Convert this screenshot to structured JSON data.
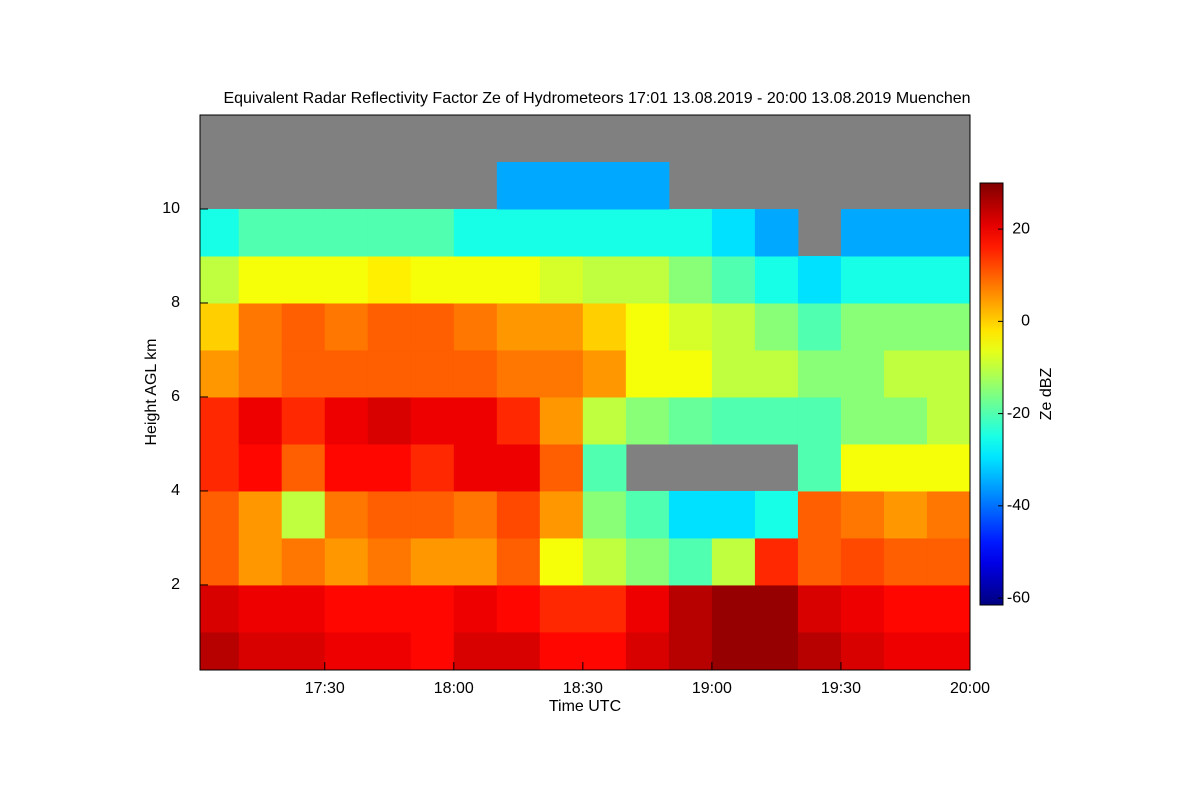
{
  "chart_data": {
    "type": "heatmap",
    "title": "Equivalent Radar Reflectivity Factor Ze of Hydrometeors   17:01 13.08.2019 - 20:00 13.08.2019 Muenchen",
    "x_label": "Time UTC",
    "y_label": "Height AGL km",
    "colorbar_label": "Ze dBZ",
    "colormap": "jet",
    "missing_color": "#808080",
    "xlim": [
      "17:01",
      "20:00"
    ],
    "xticks": [
      "17:30",
      "18:00",
      "18:30",
      "19:00",
      "19:30",
      "20:00"
    ],
    "ylim": [
      0.19,
      12
    ],
    "yticks": [
      2,
      4,
      6,
      8,
      10
    ],
    "clim": [
      -61.5,
      30
    ],
    "cticks": [
      -60,
      -40,
      -20,
      0,
      20
    ],
    "x_edges": [
      "17:01",
      "17:10",
      "17:20",
      "17:30",
      "17:40",
      "17:50",
      "18:00",
      "18:10",
      "18:20",
      "18:30",
      "18:40",
      "18:50",
      "19:00",
      "19:10",
      "19:20",
      "19:30",
      "19:40",
      "19:50",
      "20:00"
    ],
    "y_edges": [
      0.19,
      1,
      2,
      3,
      4,
      5,
      6,
      7,
      8,
      9,
      10,
      11,
      12
    ],
    "z": [
      [
        25,
        22,
        22,
        20,
        20,
        18,
        22,
        22,
        18,
        18,
        22,
        25,
        28,
        28,
        25,
        22,
        20,
        20
      ],
      [
        22,
        20,
        20,
        18,
        18,
        18,
        20,
        18,
        15,
        15,
        20,
        25,
        28,
        28,
        22,
        20,
        18,
        18
      ],
      [
        10,
        5,
        8,
        5,
        8,
        5,
        5,
        10,
        -5,
        -10,
        -15,
        -20,
        -10,
        15,
        10,
        12,
        10,
        10
      ],
      [
        10,
        5,
        -10,
        8,
        10,
        10,
        8,
        12,
        5,
        -15,
        -20,
        -30,
        -30,
        -25,
        10,
        8,
        5,
        8
      ],
      [
        15,
        18,
        10,
        18,
        18,
        15,
        20,
        20,
        10,
        -20,
        null,
        null,
        null,
        null,
        -20,
        -5,
        -5,
        -5
      ],
      [
        15,
        20,
        15,
        20,
        22,
        20,
        20,
        15,
        5,
        -10,
        -15,
        -18,
        -20,
        -20,
        -20,
        -15,
        -15,
        -10
      ],
      [
        5,
        8,
        10,
        10,
        10,
        10,
        10,
        8,
        8,
        5,
        -5,
        -5,
        -10,
        -10,
        -15,
        -15,
        -10,
        -10
      ],
      [
        0,
        8,
        10,
        8,
        10,
        10,
        8,
        5,
        5,
        0,
        -5,
        -8,
        -10,
        -15,
        -20,
        -15,
        -15,
        -15
      ],
      [
        -10,
        -5,
        -5,
        -5,
        -3,
        -5,
        -5,
        -5,
        -8,
        -10,
        -10,
        -15,
        -20,
        -25,
        -30,
        -25,
        -25,
        -25
      ],
      [
        -25,
        -20,
        -20,
        -20,
        -20,
        -20,
        -25,
        -25,
        -25,
        -25,
        -25,
        -25,
        -30,
        -35,
        null,
        -35,
        -35,
        -35
      ],
      [
        null,
        null,
        null,
        null,
        null,
        null,
        null,
        -35,
        -35,
        -35,
        -35,
        null,
        null,
        null,
        null,
        null,
        null,
        null
      ],
      [
        null,
        null,
        null,
        null,
        null,
        null,
        null,
        null,
        null,
        null,
        null,
        null,
        null,
        null,
        null,
        null,
        null,
        null
      ]
    ]
  }
}
